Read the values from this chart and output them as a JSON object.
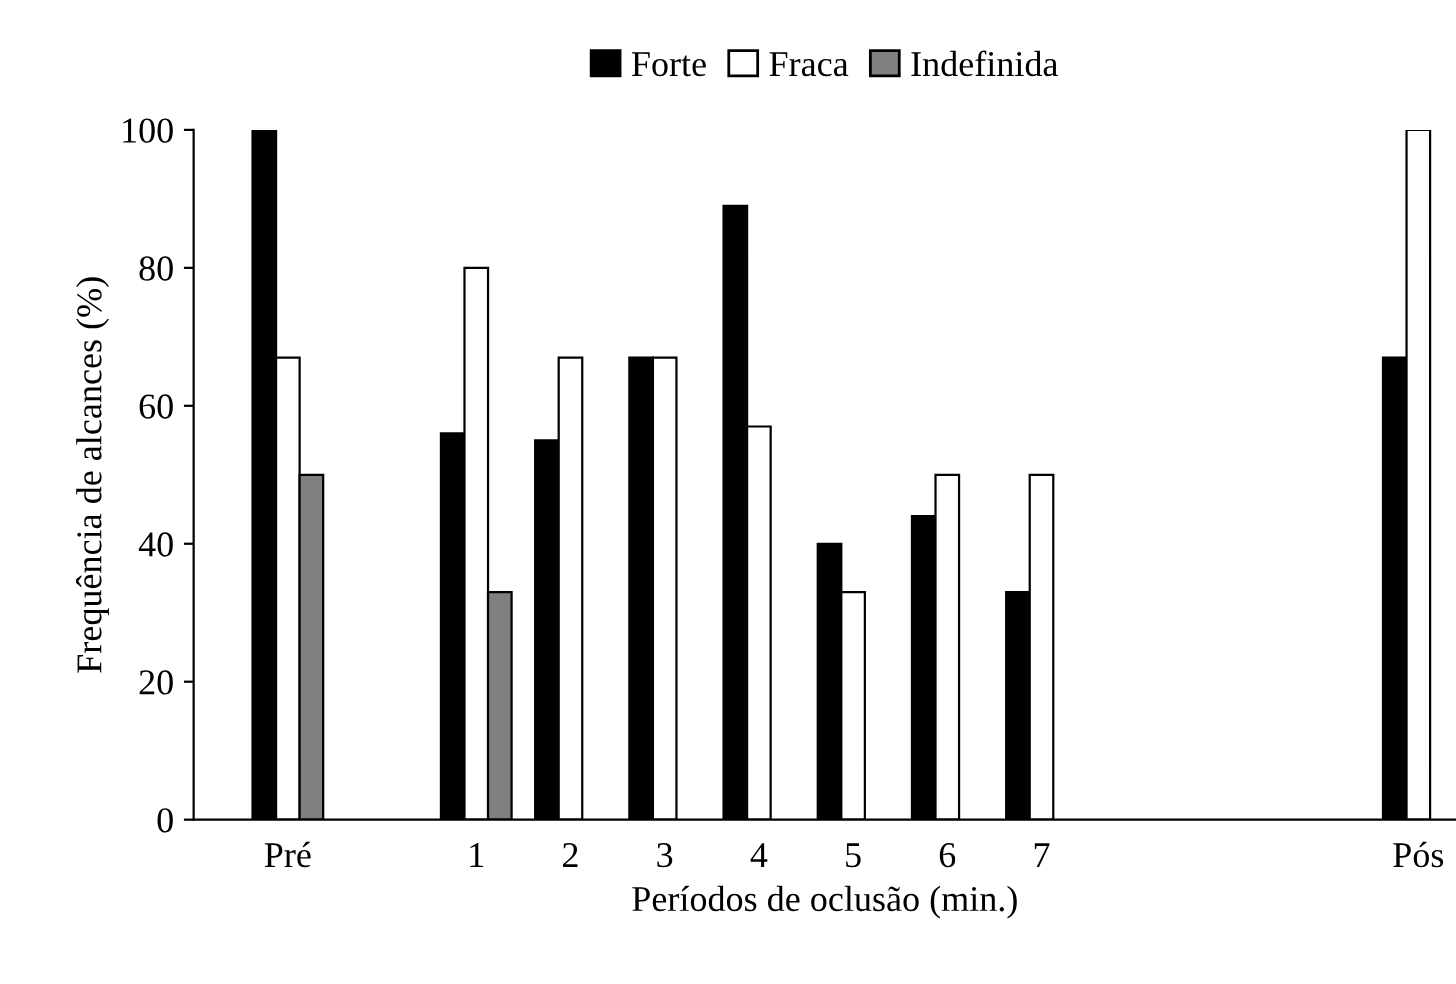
{
  "chart_data": {
    "type": "bar",
    "xlabel": "Períodos de oclusão (min.)",
    "ylabel": "Frequência de alcances (%)",
    "categories": [
      "Pré",
      null,
      "1",
      "2",
      "3",
      "4",
      "5",
      "6",
      "7",
      null,
      null,
      null,
      "Pós"
    ],
    "series": [
      {
        "name": "Forte",
        "color": "#000000",
        "values": [
          100,
          null,
          56,
          55,
          67,
          89,
          40,
          44,
          33,
          null,
          null,
          null,
          67
        ]
      },
      {
        "name": "Fraca",
        "color": "#ffffff",
        "values": [
          67,
          null,
          80,
          67,
          67,
          57,
          33,
          50,
          50,
          null,
          null,
          null,
          100
        ]
      },
      {
        "name": "Indefinida",
        "color": "#808080",
        "values": [
          50,
          null,
          33,
          null,
          null,
          null,
          null,
          null,
          null,
          null,
          null,
          null,
          null
        ]
      }
    ],
    "ylim": [
      0,
      100
    ],
    "yticks": [
      0,
      20,
      40,
      60,
      80,
      100
    ],
    "grid": false,
    "legend": "top"
  }
}
